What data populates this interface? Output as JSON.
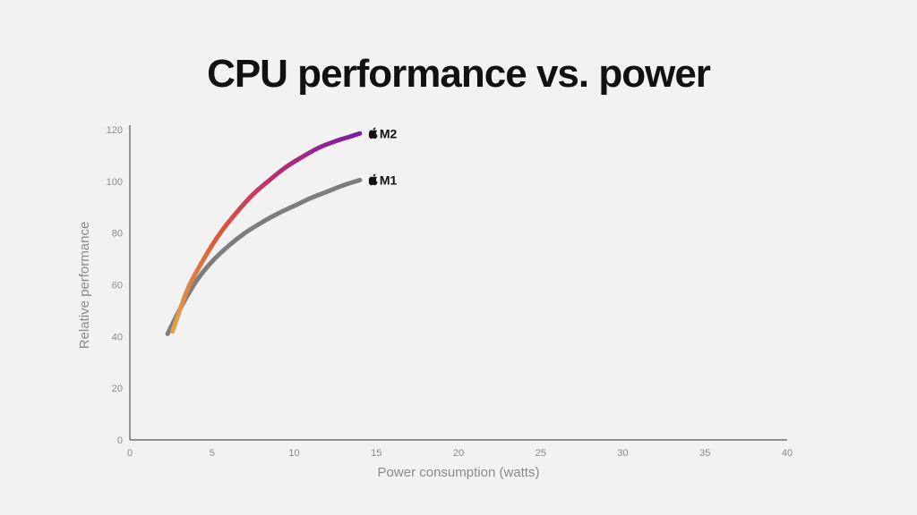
{
  "colors": {
    "background": "#f2f2f2",
    "axis": "#555555",
    "tick_text": "#8a8a8a",
    "m1_line": "#7d7d80",
    "m2_gradient": [
      "#e3a044",
      "#db5a3a",
      "#c0306a",
      "#7b1fa2"
    ]
  },
  "chart_data": {
    "type": "line",
    "title": "CPU performance vs. power",
    "xlabel": "Power consumption (watts)",
    "ylabel": "Relative performance",
    "xlim": [
      0,
      40
    ],
    "ylim": [
      0,
      120
    ],
    "xticks": [
      "0",
      "5",
      "10",
      "15",
      "20",
      "25",
      "30",
      "35",
      "40"
    ],
    "yticks": [
      "0",
      "20",
      "40",
      "60",
      "80",
      "100",
      "120"
    ],
    "grid": false,
    "series": [
      {
        "name": "M2",
        "logo_icon": "apple-logo-icon",
        "x": [
          2.6,
          3.5,
          4.5,
          5.5,
          6.5,
          7.5,
          8.5,
          9.5,
          10.5,
          11.5,
          12.5,
          13.5,
          14.0
        ],
        "y": [
          42,
          58,
          70,
          80,
          88,
          95,
          100.5,
          105.5,
          109.5,
          113,
          115.5,
          117.5,
          118.5
        ]
      },
      {
        "name": "M1",
        "logo_icon": "apple-logo-icon",
        "x": [
          2.3,
          3.0,
          4.0,
          5.0,
          6.0,
          7.0,
          8.0,
          9.0,
          10.0,
          11.0,
          12.0,
          13.0,
          14.0
        ],
        "y": [
          41,
          50,
          61,
          69,
          75,
          80,
          84,
          87.5,
          90.5,
          93.5,
          96,
          98.5,
          100.5
        ]
      }
    ]
  }
}
